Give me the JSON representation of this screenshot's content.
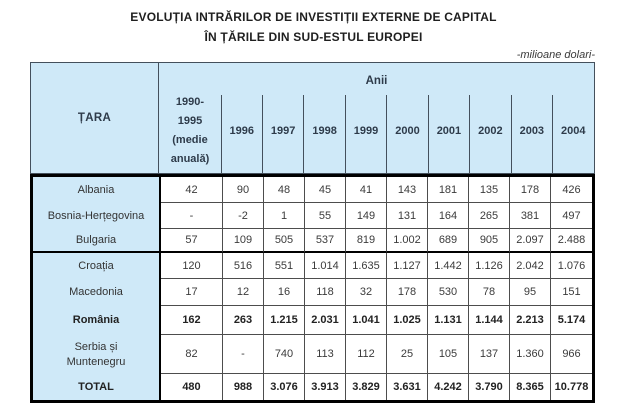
{
  "title": {
    "line1": "EVOLUȚIA INTRĂRILOR DE INVESTIȚII EXTERNE DE CAPITAL",
    "line2": "ÎN ȚĂRILE DIN SUD-ESTUL EUROPEI"
  },
  "unit_note": "-milioane dolari-",
  "colors": {
    "header_bg": "#cfe9f8",
    "outer_border": "#000000",
    "grid_line": "#4d4d4d"
  },
  "table": {
    "country_header": "ȚARA",
    "years_group_header": "Anii",
    "avg_header": "1990-\n1995\n(medie\nanuală)",
    "years": [
      "1996",
      "1997",
      "1998",
      "1999",
      "2000",
      "2001",
      "2002",
      "2003",
      "2004"
    ],
    "rows": [
      {
        "country": "Albania",
        "values": [
          "42",
          "90",
          "48",
          "45",
          "41",
          "143",
          "181",
          "135",
          "178",
          "426"
        ]
      },
      {
        "country": "Bosnia-Herțegovina",
        "values": [
          "-",
          "-2",
          "1",
          "55",
          "149",
          "131",
          "164",
          "265",
          "381",
          "497"
        ]
      },
      {
        "country": "Bulgaria",
        "values": [
          "57",
          "109",
          "505",
          "537",
          "819",
          "1.002",
          "689",
          "905",
          "2.097",
          "2.488"
        ]
      },
      {
        "country": "Croația",
        "values": [
          "120",
          "516",
          "551",
          "1.014",
          "1.635",
          "1.127",
          "1.442",
          "1.126",
          "2.042",
          "1.076"
        ]
      },
      {
        "country": "Macedonia",
        "values": [
          "17",
          "12",
          "16",
          "118",
          "32",
          "178",
          "530",
          "78",
          "95",
          "151"
        ]
      },
      {
        "country": "România",
        "values": [
          "162",
          "263",
          "1.215",
          "2.031",
          "1.041",
          "1.025",
          "1.131",
          "1.144",
          "2.213",
          "5.174"
        ]
      },
      {
        "country": "Serbia și\nMuntenegru",
        "values": [
          "82",
          "-",
          "740",
          "113",
          "112",
          "25",
          "105",
          "137",
          "1.360",
          "966"
        ]
      },
      {
        "country": "TOTAL",
        "values": [
          "480",
          "988",
          "3.076",
          "3.913",
          "3.829",
          "3.631",
          "4.242",
          "3.790",
          "8.365",
          "10.778"
        ]
      }
    ]
  }
}
